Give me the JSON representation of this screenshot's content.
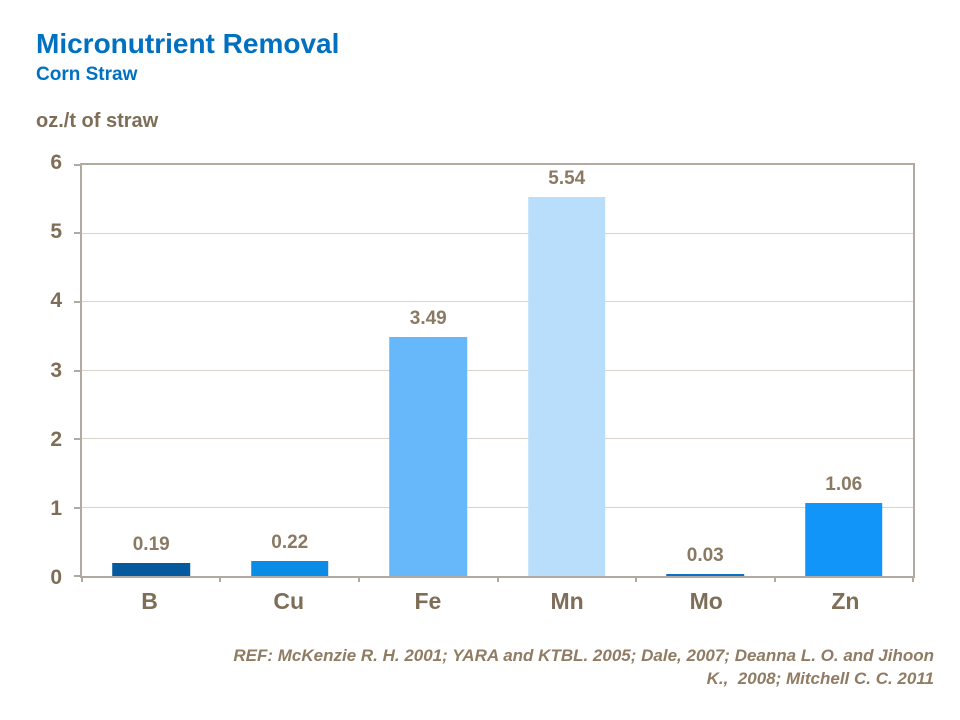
{
  "header": {
    "title": "Micronutrient Removal",
    "subtitle": "Corn Straw"
  },
  "axis": {
    "y_axis_title": "oz./t of straw"
  },
  "footer": {
    "ref_line1": "REF: McKenzie R. H. 2001; YARA and KTBL. 2005; Dale, 2007; Deanna L. O. and Jihoon",
    "ref_line2": "K.,  2008; Mitchell C. C. 2011"
  },
  "colors": {
    "title_blue": "#0070c0",
    "text_brown": "#7f6e57",
    "value_label_brown": "#8a7a64",
    "footer_brown": "#8f7c63",
    "axis_border_grey": "#b2a9a0",
    "gridline_grey": "#d9d3cd",
    "background": "#ffffff"
  },
  "chart_data": {
    "type": "bar",
    "title": "Micronutrient Removal",
    "subtitle": "Corn Straw",
    "xlabel": "",
    "ylabel": "oz./t of straw",
    "categories": [
      "B",
      "Cu",
      "Fe",
      "Mn",
      "Mo",
      "Zn"
    ],
    "values": [
      0.19,
      0.22,
      3.49,
      5.54,
      0.03,
      1.06
    ],
    "value_labels": [
      "0.19",
      "0.22",
      "3.49",
      "5.54",
      "0.03",
      "1.06"
    ],
    "bar_colors": [
      "#05599c",
      "#0a8ce6",
      "#66b8fa",
      "#b9defb",
      "#0d6fc4",
      "#1295f8"
    ],
    "ylim": [
      0,
      6
    ],
    "ytick_interval": 1,
    "ytick_labels": [
      "0",
      "1",
      "2",
      "3",
      "4",
      "5",
      "6"
    ],
    "grid": true,
    "legend_position": "none",
    "bar_width_fraction": 0.56
  }
}
